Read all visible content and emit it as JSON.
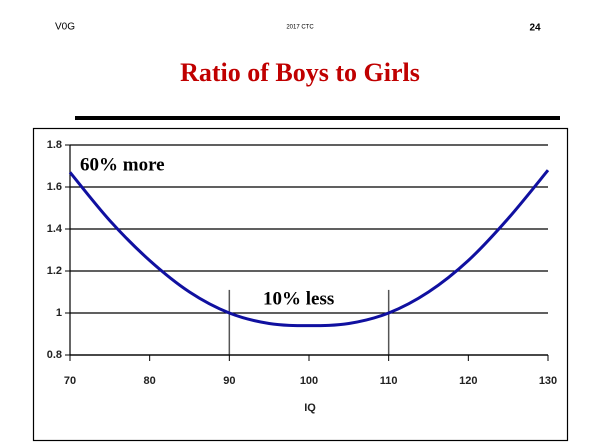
{
  "header": {
    "left": "V0G",
    "center": "2017 CTC",
    "page": "24"
  },
  "chart_data": {
    "type": "line",
    "title": "Ratio of Boys to Girls",
    "xlabel": "IQ",
    "x": [
      70,
      75,
      80,
      85,
      90,
      95,
      100,
      105,
      110,
      115,
      120,
      125,
      130
    ],
    "series": [
      {
        "name": "Ratio",
        "color": "#1010a0",
        "values": [
          1.67,
          1.44,
          1.25,
          1.1,
          1.0,
          0.95,
          0.94,
          0.95,
          1.0,
          1.1,
          1.25,
          1.45,
          1.68
        ]
      }
    ],
    "xlim": [
      70,
      130
    ],
    "xticks": [
      70,
      80,
      90,
      100,
      110,
      120,
      130
    ],
    "ylim": [
      0.8,
      1.8
    ],
    "yticks": [
      0.8,
      1,
      1.2,
      1.4,
      1.6,
      1.8
    ],
    "grid": true,
    "reference_lines": [
      {
        "x": 90,
        "ymax": 1.11
      },
      {
        "x": 110,
        "ymax": 1.11
      }
    ],
    "annotations": [
      "60% more",
      "10% less"
    ]
  }
}
